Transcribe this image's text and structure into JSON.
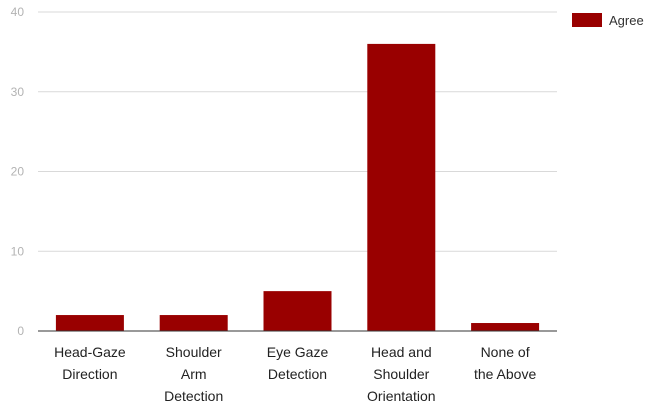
{
  "chart_data": {
    "type": "bar",
    "categories": [
      "Head-Gaze Direction",
      "Shoulder Arm Detection",
      "Eye Gaze Detection",
      "Head and Shoulder Orientation",
      "None of the Above"
    ],
    "category_lines": [
      [
        "Head-Gaze",
        "Direction"
      ],
      [
        "Shoulder",
        "Arm",
        "Detection"
      ],
      [
        "Eye Gaze",
        "Detection"
      ],
      [
        "Head and",
        "Shoulder",
        "Orientation"
      ],
      [
        "None of",
        "the Above"
      ]
    ],
    "series": [
      {
        "name": "Agree",
        "values": [
          2,
          2,
          5,
          36,
          1
        ],
        "color": "#990000"
      }
    ],
    "ylim": [
      0,
      40
    ],
    "yticks": [
      0,
      10,
      20,
      30,
      40
    ],
    "grid": true,
    "legend_position": "top-right",
    "title": "",
    "xlabel": "",
    "ylabel": ""
  }
}
